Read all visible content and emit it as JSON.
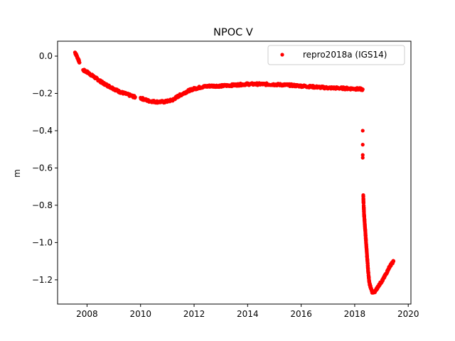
{
  "chart_data": {
    "type": "scatter",
    "title": "NPOC V",
    "xlabel": "",
    "ylabel": "m",
    "xlim": [
      2006.9,
      2020.1
    ],
    "ylim": [
      -1.33,
      0.08
    ],
    "xticks": [
      2008,
      2010,
      2012,
      2014,
      2016,
      2018,
      2020
    ],
    "yticks": [
      0.0,
      -0.2,
      -0.4,
      -0.6,
      -0.8,
      -1.0,
      -1.2
    ],
    "ytick_labels": [
      "0.0",
      "−0.2",
      "−0.4",
      "−0.6",
      "−0.8",
      "−1.0",
      "−1.2"
    ],
    "grid": false,
    "legend_position": "top-right",
    "series": [
      {
        "name": "repro2018a (IGS14)",
        "color": "#ff0000",
        "marker": "circle",
        "segments": [
          [
            [
              2007.55,
              0.02
            ],
            [
              2007.62,
              0.0
            ],
            [
              2007.68,
              -0.02
            ],
            [
              2007.72,
              -0.035
            ]
          ],
          [
            [
              2007.85,
              -0.075
            ],
            [
              2008.0,
              -0.085
            ],
            [
              2008.2,
              -0.105
            ],
            [
              2008.4,
              -0.125
            ],
            [
              2008.6,
              -0.145
            ],
            [
              2008.8,
              -0.16
            ],
            [
              2009.0,
              -0.175
            ],
            [
              2009.2,
              -0.19
            ],
            [
              2009.4,
              -0.2
            ],
            [
              2009.6,
              -0.21
            ],
            [
              2009.8,
              -0.22
            ]
          ],
          [
            [
              2010.0,
              -0.225
            ],
            [
              2010.3,
              -0.24
            ],
            [
              2010.6,
              -0.245
            ],
            [
              2010.9,
              -0.245
            ],
            [
              2011.2,
              -0.235
            ],
            [
              2011.4,
              -0.215
            ],
            [
              2011.6,
              -0.2
            ],
            [
              2011.8,
              -0.185
            ],
            [
              2012.0,
              -0.175
            ],
            [
              2012.3,
              -0.165
            ],
            [
              2012.6,
              -0.16
            ],
            [
              2013.0,
              -0.16
            ],
            [
              2013.5,
              -0.155
            ],
            [
              2014.0,
              -0.15
            ],
            [
              2014.5,
              -0.15
            ],
            [
              2015.0,
              -0.152
            ],
            [
              2015.5,
              -0.155
            ],
            [
              2016.0,
              -0.16
            ],
            [
              2016.5,
              -0.165
            ],
            [
              2017.0,
              -0.17
            ],
            [
              2017.5,
              -0.172
            ],
            [
              2018.0,
              -0.175
            ],
            [
              2018.3,
              -0.178
            ]
          ],
          [
            [
              2018.32,
              -0.75
            ],
            [
              2018.35,
              -0.85
            ],
            [
              2018.4,
              -0.95
            ],
            [
              2018.45,
              -1.05
            ],
            [
              2018.5,
              -1.15
            ],
            [
              2018.55,
              -1.22
            ],
            [
              2018.65,
              -1.265
            ],
            [
              2018.75,
              -1.265
            ],
            [
              2018.9,
              -1.23
            ],
            [
              2019.05,
              -1.2
            ],
            [
              2019.2,
              -1.16
            ],
            [
              2019.3,
              -1.13
            ],
            [
              2019.45,
              -1.1
            ]
          ]
        ],
        "isolated": [
          [
            2018.3,
            -0.4
          ],
          [
            2018.3,
            -0.475
          ],
          [
            2018.3,
            -0.53
          ],
          [
            2018.3,
            -0.545
          ]
        ]
      }
    ]
  }
}
